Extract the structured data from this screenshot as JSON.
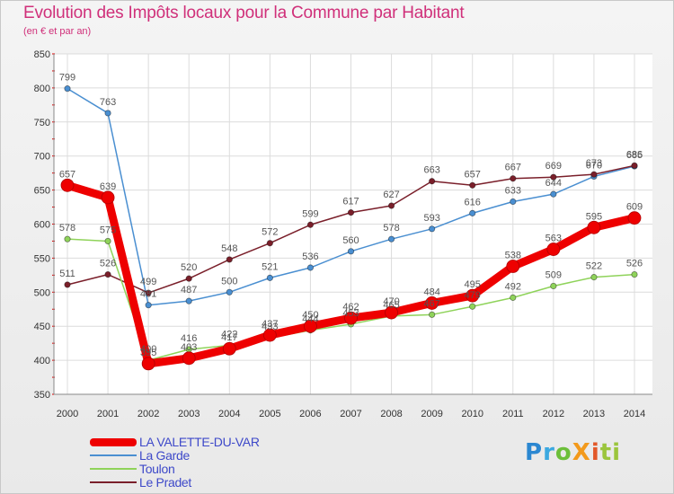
{
  "header": {
    "title": "Evolution des Impôts locaux pour la Commune par Habitant",
    "subtitle": "(en € et par an)"
  },
  "logo": {
    "text": "ProXiti",
    "parts": [
      "P",
      "r",
      "o",
      "X",
      "i",
      "ti"
    ]
  },
  "chart_data": {
    "type": "line",
    "title": "Evolution des Impôts locaux pour la Commune par Habitant",
    "subtitle": "(en € et par an)",
    "xlabel": "",
    "ylabel": "",
    "categories": [
      "2000",
      "2001",
      "2002",
      "2003",
      "2004",
      "2005",
      "2006",
      "2007",
      "2008",
      "2009",
      "2010",
      "2011",
      "2012",
      "2013",
      "2014"
    ],
    "ylim": [
      350,
      850
    ],
    "yticks": [
      350,
      400,
      450,
      500,
      550,
      600,
      650,
      700,
      750,
      800,
      850
    ],
    "grid": true,
    "legend_position": "bottom-left",
    "series": [
      {
        "name": "La Garde",
        "color": "#4a8fd1",
        "values": [
          799,
          763,
          481,
          487,
          500,
          521,
          536,
          560,
          578,
          593,
          616,
          633,
          644,
          670,
          685
        ]
      },
      {
        "name": "Le Pradet",
        "color": "#7a1f2a",
        "values": [
          511,
          526,
          499,
          520,
          548,
          572,
          599,
          617,
          627,
          663,
          657,
          667,
          669,
          673,
          686
        ]
      },
      {
        "name": "Toulon",
        "color": "#8fd35a",
        "values": [
          578,
          575,
          400,
          416,
          422,
          433,
          444,
          453,
          465,
          467,
          479,
          492,
          509,
          522,
          526
        ]
      },
      {
        "name": "LA VALETTE-DU-VAR",
        "color": "#ee0000",
        "values": [
          657,
          639,
          395,
          403,
          417,
          437,
          450,
          462,
          470,
          484,
          495,
          538,
          563,
          595,
          609
        ]
      }
    ]
  }
}
